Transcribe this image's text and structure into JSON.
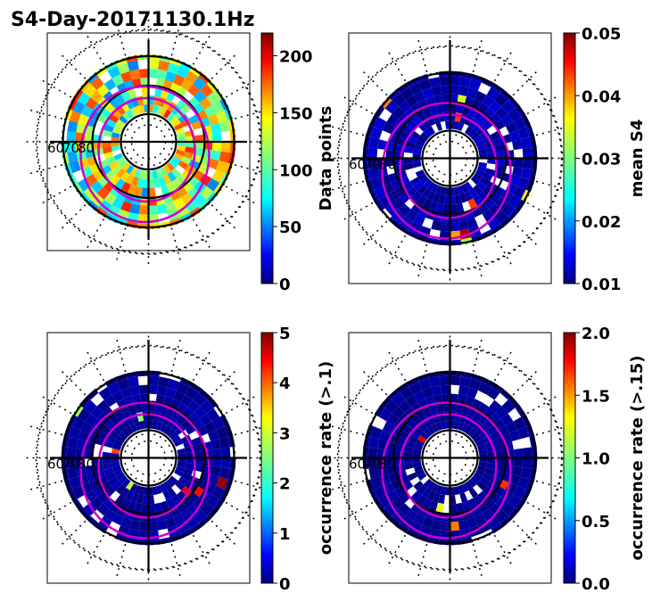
{
  "figure": {
    "title": "S4-Day-20171130.1Hz"
  },
  "chart_data": [
    {
      "type": "heatmap",
      "projection": "polar (geomagnetic latitude vs MLT)",
      "panel": "top-left",
      "colormap": "jet",
      "colorbar": {
        "label": "Data points",
        "ticks": [
          "0",
          "50",
          "100",
          "150",
          "200"
        ],
        "range": [
          0,
          220
        ]
      },
      "lat_labels": [
        "60",
        "70",
        "80"
      ],
      "grid": true,
      "description": "dense coverage of 60-80 deg ring, counts mostly 60-180"
    },
    {
      "type": "heatmap",
      "projection": "polar (geomagnetic latitude vs MLT)",
      "panel": "top-right",
      "colormap": "jet",
      "colorbar": {
        "label": "mean S4",
        "ticks": [
          "0.01",
          "0.02",
          "0.03",
          "0.04",
          "0.05"
        ],
        "range": [
          0.01,
          0.05
        ]
      },
      "lat_labels": [
        "60",
        "70",
        "80"
      ],
      "grid": true,
      "description": "values mostly near 0.01 with a few cells up to about 0.035"
    },
    {
      "type": "heatmap",
      "projection": "polar (geomagnetic latitude vs MLT)",
      "panel": "bottom-left",
      "colormap": "jet",
      "colorbar": {
        "label": "occurrence rate (>.1)",
        "ticks": [
          "0",
          "1",
          "2",
          "3",
          "4",
          "5"
        ],
        "range": [
          0,
          5
        ]
      },
      "lat_labels": [
        "60",
        "70",
        "80"
      ],
      "grid": true,
      "description": "mostly 0, scattered cells up to 5 in the dawn/midnight sector"
    },
    {
      "type": "heatmap",
      "projection": "polar (geomagnetic latitude vs MLT)",
      "panel": "bottom-right",
      "colormap": "jet",
      "colorbar": {
        "label": "occurrence rate (>.15)",
        "ticks": [
          "0.0",
          "0.5",
          "1.0",
          "1.5",
          "2.0"
        ],
        "range": [
          0,
          2
        ]
      },
      "lat_labels": [
        "60",
        "70",
        "80"
      ],
      "grid": true,
      "description": "mostly 0, a few cells near 2.0"
    }
  ]
}
